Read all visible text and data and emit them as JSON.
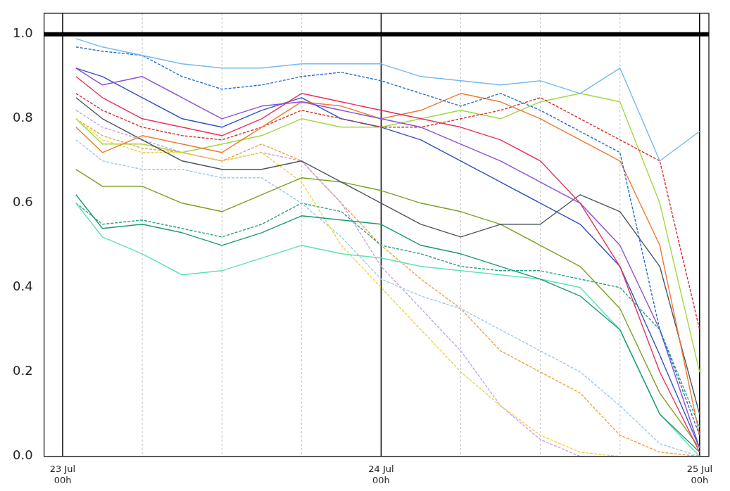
{
  "chart_data": {
    "type": "line",
    "x": [
      "--07-23T01:00",
      "--07-23T03:00",
      "--07-23T06:00",
      "--07-23T09:00",
      "--07-23T12:00",
      "--07-23T15:00",
      "--07-23T18:00",
      "--07-23T21:00",
      "--07-24T00:00",
      "--07-24T03:00",
      "--07-24T06:00",
      "--07-24T09:00",
      "--07-24T12:00",
      "--07-24T15:00",
      "--07-24T18:00",
      "--07-24T21:00",
      "--07-25T00:00"
    ],
    "xlim": [
      "--07-22T22:36",
      "--07-25T00:42"
    ],
    "xticks": [
      {
        "value": "--07-23T00:00",
        "label": "23 Jul\n00h"
      },
      {
        "value": "--07-23T06:00",
        "label": null
      },
      {
        "value": "--07-23T12:00",
        "label": null
      },
      {
        "value": "--07-23T18:00",
        "label": null
      },
      {
        "value": "--07-24T00:00",
        "label": "24 Jul\n00h"
      },
      {
        "value": "--07-24T06:00",
        "label": null
      },
      {
        "value": "--07-24T12:00",
        "label": null
      },
      {
        "value": "--07-24T18:00",
        "label": null
      },
      {
        "value": "--07-25T00:00",
        "label": "25 Jul\n00h"
      }
    ],
    "ylim": [
      0,
      1.05
    ],
    "yticks": [
      {
        "value": 0,
        "label": "0.0"
      },
      {
        "value": 0.2,
        "label": "0.2"
      },
      {
        "value": 0.4,
        "label": "0.4"
      },
      {
        "value": 0.6,
        "label": "0.6"
      },
      {
        "value": 0.8,
        "label": "0.8"
      },
      {
        "value": 1,
        "label": "1.0"
      }
    ],
    "grid": "x",
    "legend": false,
    "marker": "none",
    "ref_lines": [
      {
        "axis": "y",
        "value": 1,
        "color": "#000000"
      }
    ],
    "series": [
      {
        "color": "#74b9f0",
        "line_style": "solid",
        "values": [
          0.99,
          0.97,
          0.95,
          0.93,
          0.92,
          0.92,
          0.93,
          0.93,
          0.93,
          0.9,
          0.89,
          0.88,
          0.89,
          0.86,
          0.92,
          0.7,
          0.77
        ]
      },
      {
        "color": "#1f6fd0",
        "line_style": "dashed",
        "values": [
          0.97,
          0.96,
          0.95,
          0.9,
          0.87,
          0.88,
          0.9,
          0.91,
          0.89,
          0.86,
          0.83,
          0.86,
          0.82,
          0.77,
          0.72,
          0.3,
          0.05
        ]
      },
      {
        "color": "#8a4fd8",
        "line_style": "solid",
        "values": [
          0.92,
          0.88,
          0.9,
          0.85,
          0.8,
          0.83,
          0.84,
          0.82,
          0.8,
          0.78,
          0.74,
          0.7,
          0.65,
          0.6,
          0.5,
          0.3,
          0.02
        ]
      },
      {
        "color": "#e8305a",
        "line_style": "solid",
        "values": [
          0.9,
          0.85,
          0.8,
          0.78,
          0.76,
          0.8,
          0.86,
          0.84,
          0.82,
          0.8,
          0.78,
          0.75,
          0.7,
          0.6,
          0.45,
          0.2,
          0.01
        ]
      },
      {
        "color": "#f07830",
        "line_style": "solid",
        "values": [
          0.78,
          0.72,
          0.76,
          0.74,
          0.72,
          0.78,
          0.84,
          0.83,
          0.8,
          0.82,
          0.86,
          0.84,
          0.8,
          0.75,
          0.7,
          0.5,
          0.05
        ]
      },
      {
        "color": "#4a5560",
        "line_style": "solid",
        "values": [
          0.85,
          0.8,
          0.75,
          0.7,
          0.68,
          0.68,
          0.7,
          0.65,
          0.6,
          0.55,
          0.52,
          0.55,
          0.55,
          0.62,
          0.58,
          0.45,
          0.1
        ]
      },
      {
        "color": "#7aa020",
        "line_style": "solid",
        "values": [
          0.68,
          0.64,
          0.64,
          0.6,
          0.58,
          0.62,
          0.66,
          0.65,
          0.63,
          0.6,
          0.58,
          0.55,
          0.5,
          0.45,
          0.35,
          0.15,
          0.02
        ]
      },
      {
        "color": "#1a9a70",
        "line_style": "solid",
        "values": [
          0.62,
          0.54,
          0.55,
          0.53,
          0.5,
          0.53,
          0.57,
          0.56,
          0.55,
          0.5,
          0.48,
          0.45,
          0.42,
          0.38,
          0.3,
          0.1,
          0.01
        ]
      },
      {
        "color": "#60e0b0",
        "line_style": "solid",
        "values": [
          0.6,
          0.52,
          0.48,
          0.43,
          0.44,
          0.47,
          0.5,
          0.48,
          0.47,
          0.45,
          0.44,
          0.43,
          0.42,
          0.4,
          0.3,
          0.1,
          0
        ]
      },
      {
        "color": "#f0d040",
        "line_style": "dashed",
        "values": [
          0.8,
          0.75,
          0.72,
          0.72,
          0.7,
          0.72,
          0.65,
          0.5,
          0.4,
          0.3,
          0.2,
          0.12,
          0.05,
          0.01,
          0,
          0,
          0
        ]
      },
      {
        "color": "#9cc8f0",
        "line_style": "dashed",
        "values": [
          0.75,
          0.7,
          0.68,
          0.68,
          0.66,
          0.66,
          0.6,
          0.52,
          0.42,
          0.38,
          0.35,
          0.3,
          0.25,
          0.2,
          0.12,
          0.03,
          0
        ]
      },
      {
        "color": "#c0a0f0",
        "line_style": "dashed",
        "values": [
          0.82,
          0.78,
          0.75,
          0.72,
          0.7,
          0.72,
          0.7,
          0.6,
          0.45,
          0.35,
          0.25,
          0.12,
          0.04,
          0,
          0,
          0,
          0
        ]
      },
      {
        "color": "#d03030",
        "line_style": "dashed",
        "values": [
          0.86,
          0.82,
          0.78,
          0.76,
          0.75,
          0.78,
          0.82,
          0.8,
          0.78,
          0.78,
          0.8,
          0.82,
          0.85,
          0.8,
          0.75,
          0.7,
          0.3
        ]
      },
      {
        "color": "#a0d840",
        "line_style": "solid",
        "values": [
          0.8,
          0.74,
          0.74,
          0.72,
          0.74,
          0.76,
          0.8,
          0.78,
          0.78,
          0.8,
          0.82,
          0.8,
          0.84,
          0.86,
          0.84,
          0.6,
          0.2
        ]
      },
      {
        "color": "#20a080",
        "line_style": "dashed",
        "values": [
          0.6,
          0.55,
          0.56,
          0.54,
          0.52,
          0.55,
          0.6,
          0.58,
          0.5,
          0.48,
          0.45,
          0.44,
          0.44,
          0.42,
          0.4,
          0.3,
          0.07
        ]
      },
      {
        "color": "#f0a040",
        "line_style": "dashed",
        "values": [
          0.8,
          0.76,
          0.73,
          0.72,
          0.7,
          0.74,
          0.7,
          0.6,
          0.5,
          0.42,
          0.35,
          0.25,
          0.2,
          0.15,
          0.05,
          0.01,
          0
        ]
      },
      {
        "color": "#3050c0",
        "line_style": "solid",
        "values": [
          0.92,
          0.9,
          0.85,
          0.8,
          0.78,
          0.82,
          0.85,
          0.8,
          0.78,
          0.75,
          0.7,
          0.65,
          0.6,
          0.55,
          0.45,
          0.24,
          0.02
        ]
      }
    ]
  }
}
